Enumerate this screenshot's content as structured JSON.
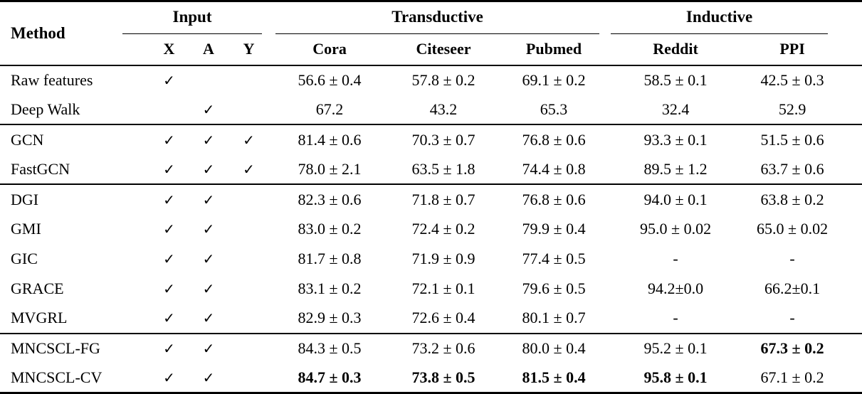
{
  "table": {
    "method_header": "Method",
    "groups": [
      {
        "label": "Input",
        "span": 3
      },
      {
        "label": "Transductive",
        "span": 3
      },
      {
        "label": "Inductive",
        "span": 2
      }
    ],
    "columns": [
      "X",
      "A",
      "Y",
      "Cora",
      "Citeseer",
      "Pubmed",
      "Reddit",
      "PPI"
    ],
    "check_glyph": "✓",
    "missing_glyph": "-",
    "rows": [
      {
        "method": "Raw features",
        "cells": [
          "✓",
          "",
          "",
          "56.6 ± 0.4",
          "57.8 ± 0.2",
          "69.1 ± 0.2",
          "58.5 ± 0.1",
          "42.5 ± 0.3"
        ],
        "bold": [],
        "section_start": false
      },
      {
        "method": "Deep Walk",
        "cells": [
          "",
          "✓",
          "",
          "67.2",
          "43.2",
          "65.3",
          "32.4",
          "52.9"
        ],
        "bold": [],
        "section_start": false
      },
      {
        "method": "GCN",
        "cells": [
          "✓",
          "✓",
          "✓",
          "81.4 ± 0.6",
          "70.3 ± 0.7",
          "76.8 ± 0.6",
          "93.3 ± 0.1",
          "51.5 ± 0.6"
        ],
        "bold": [],
        "section_start": true
      },
      {
        "method": "FastGCN",
        "cells": [
          "✓",
          "✓",
          "✓",
          "78.0 ± 2.1",
          "63.5 ± 1.8",
          "74.4 ± 0.8",
          "89.5 ± 1.2",
          "63.7 ± 0.6"
        ],
        "bold": [],
        "section_start": false
      },
      {
        "method": "DGI",
        "cells": [
          "✓",
          "✓",
          "",
          "82.3 ± 0.6",
          "71.8 ± 0.7",
          "76.8 ± 0.6",
          "94.0 ± 0.1",
          "63.8 ± 0.2"
        ],
        "bold": [],
        "section_start": true
      },
      {
        "method": "GMI",
        "cells": [
          "✓",
          "✓",
          "",
          "83.0 ± 0.2",
          "72.4 ± 0.2",
          "79.9 ± 0.4",
          "95.0 ± 0.02",
          "65.0 ± 0.02"
        ],
        "bold": [],
        "section_start": false
      },
      {
        "method": "GIC",
        "cells": [
          "✓",
          "✓",
          "",
          "81.7 ± 0.8",
          "71.9 ± 0.9",
          "77.4 ± 0.5",
          "-",
          "-"
        ],
        "bold": [],
        "section_start": false
      },
      {
        "method": "GRACE",
        "cells": [
          "✓",
          "✓",
          "",
          "83.1 ± 0.2",
          "72.1 ± 0.1",
          "79.6 ± 0.5",
          "94.2±0.0",
          "66.2±0.1"
        ],
        "bold": [],
        "section_start": false
      },
      {
        "method": "MVGRL",
        "cells": [
          "✓",
          "✓",
          "",
          "82.9 ± 0.3",
          "72.6 ± 0.4",
          "80.1 ± 0.7",
          "-",
          "-"
        ],
        "bold": [],
        "section_start": false
      },
      {
        "method": "MNCSCL-FG",
        "cells": [
          "✓",
          "✓",
          "",
          "84.3 ± 0.5",
          "73.2 ± 0.6",
          "80.0 ± 0.4",
          "95.2 ± 0.1",
          "67.3 ± 0.2"
        ],
        "bold": [
          7
        ],
        "section_start": true
      },
      {
        "method": "MNCSCL-CV",
        "cells": [
          "✓",
          "✓",
          "",
          "84.7 ± 0.3",
          "73.8 ± 0.5",
          "81.5 ± 0.4",
          "95.8 ± 0.1",
          "67.1 ± 0.2"
        ],
        "bold": [
          3,
          4,
          5,
          6
        ],
        "section_start": false
      }
    ]
  }
}
